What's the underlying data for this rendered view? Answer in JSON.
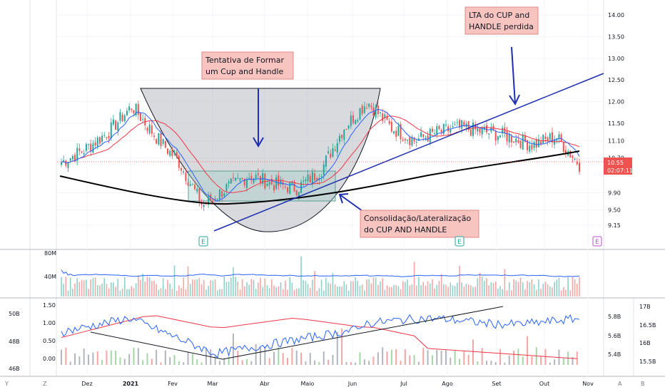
{
  "chart_data": [
    {
      "type": "candlestick",
      "x_ticks": [
        "Dez",
        "2021",
        "Fev",
        "Mar",
        "Abr",
        "Maio",
        "Jun",
        "Jul",
        "Ago",
        "Set",
        "Out",
        "Nov"
      ],
      "y_ticks": [
        "14.00",
        "13.50",
        "13.00",
        "12.50",
        "12.00",
        "11.50",
        "11.10",
        "10.70",
        "9.90",
        "9.50",
        "9.15"
      ],
      "price_levels": [
        {
          "label": "14.00",
          "value": 14.0
        },
        {
          "label": "13.50",
          "value": 13.5
        },
        {
          "label": "13.00",
          "value": 13.0
        },
        {
          "label": "12.50",
          "value": 12.5
        },
        {
          "label": "12.00",
          "value": 12.0
        },
        {
          "label": "11.50",
          "value": 11.5
        },
        {
          "label": "11.10",
          "value": 11.1
        },
        {
          "label": "10.70",
          "value": 10.7
        },
        {
          "label": "9.90",
          "value": 9.9
        },
        {
          "label": "9.50",
          "value": 9.5
        },
        {
          "label": "9.15",
          "value": 9.15
        }
      ],
      "last_price": "10.55",
      "countdown": "02:07:11",
      "close_series": [
        {
          "month": "Nov",
          "close": 10.6
        },
        {
          "month": "Dez",
          "close": 10.9
        },
        {
          "month": "Dez",
          "close": 11.3
        },
        {
          "month": "2021",
          "close": 11.9
        },
        {
          "month": "Fev",
          "close": 11.2
        },
        {
          "month": "Fev",
          "close": 10.6
        },
        {
          "month": "Mar",
          "close": 9.6
        },
        {
          "month": "Mar",
          "close": 10.0
        },
        {
          "month": "Abr",
          "close": 10.3
        },
        {
          "month": "Abr",
          "close": 10.1
        },
        {
          "month": "Maio",
          "close": 10.0
        },
        {
          "month": "Maio",
          "close": 10.4
        },
        {
          "month": "Jun",
          "close": 11.4
        },
        {
          "month": "Jun",
          "close": 12.0
        },
        {
          "month": "Jul",
          "close": 11.4
        },
        {
          "month": "Jul",
          "close": 11.1
        },
        {
          "month": "Ago",
          "close": 11.3
        },
        {
          "month": "Ago",
          "close": 11.4
        },
        {
          "month": "Set",
          "close": 11.3
        },
        {
          "month": "Set",
          "close": 11.2
        },
        {
          "month": "Out",
          "close": 11.0
        },
        {
          "month": "Out",
          "close": 11.2
        },
        {
          "month": "Out",
          "close": 10.55
        }
      ],
      "annotations": [
        {
          "lines": [
            "Tentativa de Formar",
            "um Cup and Handle"
          ]
        },
        {
          "lines": [
            "LTA do CUP and",
            "HANDLE perdida"
          ]
        },
        {
          "lines": [
            "Consolidação/Lateralização",
            "do CUP AND HANDLE"
          ]
        }
      ],
      "event_markers": [
        "E",
        "E",
        "E"
      ]
    },
    {
      "type": "bar",
      "name": "volume",
      "y_ticks": [
        "80M",
        "40M"
      ]
    },
    {
      "type": "line",
      "name": "indicator",
      "y_ticks_left_outer": [
        "50B",
        "48B",
        "46B"
      ],
      "y_ticks_left": [
        "1.50",
        "1.00",
        "0.50",
        "0.00"
      ],
      "y_ticks_right_inner": [
        "5.8B",
        "5.6B",
        "5.4B"
      ],
      "y_ticks_right_outer": [
        "17B",
        "16.5B",
        "16B",
        "15.5B"
      ]
    }
  ],
  "corner_labels": [
    "Y",
    "Z",
    "A",
    "B"
  ],
  "colors": {
    "up": "#26a69a",
    "down": "#ef5350",
    "ma_blue": "#2962ff",
    "ma_red": "#f23645",
    "trend": "#1e2fb0",
    "note_bg": "#f7c4c0",
    "note_border": "#e08a86"
  }
}
